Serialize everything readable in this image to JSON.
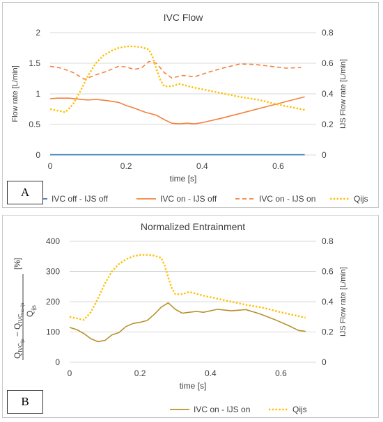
{
  "colors": {
    "ivc_off_ijs_off": "#2e75b6",
    "ivc_on_ijs_off": "#f4803c",
    "ivc_on_ijs_on_a": "#f4803c",
    "qijs": "#ffc000",
    "ivc_on_ijs_on_b": "#b8912c",
    "grid": "#d9d9d9",
    "text": "#404040"
  },
  "panels": {
    "a_label": "A",
    "b_label": "B"
  },
  "chart_data": [
    {
      "type": "line",
      "title": "IVC  Flow",
      "xlabel": "time [s]",
      "ylabel": "Flow rate [L/min]",
      "y2label": "IJS Flow rate [L/min]",
      "xlim": [
        0,
        0.7
      ],
      "ylim": [
        0,
        2
      ],
      "y2lim": [
        0,
        0.8
      ],
      "x_ticks": [
        "0",
        "0.2",
        "0.4",
        "0.6"
      ],
      "y_ticks": [
        "0",
        "0.5",
        "1",
        "1.5",
        "2"
      ],
      "y2_ticks": [
        "0",
        "0.2",
        "0.4",
        "0.6",
        "0.8"
      ],
      "grid": true,
      "legend_position": "bottom",
      "series": [
        {
          "name": "IVC off - IJS off",
          "axis": "left",
          "style": "solid",
          "x": [
            0,
            0.1,
            0.2,
            0.3,
            0.4,
            0.5,
            0.6,
            0.67
          ],
          "y": [
            0.005,
            0.005,
            0.005,
            0.005,
            0.005,
            0.005,
            0.005,
            0.005
          ]
        },
        {
          "name": "IVC on - IJS off",
          "axis": "left",
          "style": "solid",
          "x": [
            0,
            0.02,
            0.05,
            0.08,
            0.1,
            0.12,
            0.15,
            0.18,
            0.2,
            0.22,
            0.25,
            0.28,
            0.3,
            0.32,
            0.34,
            0.36,
            0.38,
            0.4,
            0.45,
            0.5,
            0.55,
            0.6,
            0.65,
            0.67
          ],
          "y": [
            0.92,
            0.93,
            0.93,
            0.91,
            0.9,
            0.91,
            0.89,
            0.86,
            0.81,
            0.77,
            0.7,
            0.65,
            0.58,
            0.52,
            0.51,
            0.52,
            0.51,
            0.53,
            0.6,
            0.68,
            0.76,
            0.84,
            0.92,
            0.95
          ]
        },
        {
          "name": "IVC on - IJS on",
          "axis": "left",
          "style": "dashed",
          "x": [
            0,
            0.03,
            0.06,
            0.09,
            0.12,
            0.15,
            0.18,
            0.2,
            0.22,
            0.24,
            0.26,
            0.28,
            0.3,
            0.32,
            0.35,
            0.38,
            0.42,
            0.46,
            0.5,
            0.54,
            0.58,
            0.62,
            0.66
          ],
          "y": [
            1.45,
            1.42,
            1.35,
            1.24,
            1.31,
            1.37,
            1.45,
            1.44,
            1.4,
            1.42,
            1.53,
            1.5,
            1.35,
            1.26,
            1.3,
            1.28,
            1.36,
            1.43,
            1.49,
            1.48,
            1.45,
            1.42,
            1.43
          ]
        },
        {
          "name": "Qijs",
          "axis": "right",
          "style": "dotted",
          "x": [
            0,
            0.02,
            0.04,
            0.06,
            0.08,
            0.1,
            0.12,
            0.14,
            0.16,
            0.18,
            0.2,
            0.22,
            0.24,
            0.26,
            0.27,
            0.28,
            0.29,
            0.3,
            0.32,
            0.34,
            0.38,
            0.42,
            0.46,
            0.5,
            0.55,
            0.6,
            0.65,
            0.67
          ],
          "y": [
            0.3,
            0.29,
            0.28,
            0.33,
            0.42,
            0.52,
            0.6,
            0.65,
            0.68,
            0.7,
            0.71,
            0.71,
            0.705,
            0.69,
            0.64,
            0.56,
            0.49,
            0.45,
            0.45,
            0.465,
            0.44,
            0.42,
            0.4,
            0.38,
            0.36,
            0.33,
            0.305,
            0.295
          ]
        }
      ]
    },
    {
      "type": "line",
      "title": "Normalized Entrainment",
      "xlabel": "time [s]",
      "ylabel": "[%]",
      "ylabel_fraction": {
        "q": "Q",
        "ivc_ijs": "IVC",
        "ijs_sub": "ijs",
        "ivc_no_ijs": "IVC",
        "no_ijs_sub": "no−ijs",
        "minus": "−",
        "qijs_q": "Q",
        "qijs_sub": "ijs"
      },
      "y2label": "IJS Flow rate [L/min]",
      "xlim": [
        0,
        0.7
      ],
      "ylim": [
        0,
        400
      ],
      "y2lim": [
        0,
        0.8
      ],
      "x_ticks": [
        "0",
        "0.2",
        "0.4",
        "0.6"
      ],
      "y_ticks": [
        "0",
        "100",
        "200",
        "300",
        "400"
      ],
      "y2_ticks": [
        "0",
        "0.2",
        "0.4",
        "0.6",
        "0.8"
      ],
      "grid": true,
      "legend_position": "bottom",
      "series": [
        {
          "name": "IVC on - IJS on",
          "axis": "left",
          "style": "solid",
          "x": [
            0,
            0.02,
            0.04,
            0.06,
            0.08,
            0.1,
            0.12,
            0.14,
            0.16,
            0.18,
            0.2,
            0.22,
            0.24,
            0.26,
            0.28,
            0.3,
            0.32,
            0.34,
            0.36,
            0.38,
            0.42,
            0.46,
            0.5,
            0.54,
            0.58,
            0.62,
            0.65,
            0.67
          ],
          "y": [
            115,
            108,
            95,
            78,
            68,
            72,
            90,
            98,
            118,
            128,
            132,
            138,
            158,
            182,
            196,
            175,
            162,
            165,
            168,
            165,
            175,
            170,
            174,
            160,
            142,
            122,
            105,
            102
          ]
        },
        {
          "name": "Qijs",
          "axis": "right",
          "style": "dotted",
          "x": [
            0,
            0.02,
            0.04,
            0.06,
            0.08,
            0.1,
            0.12,
            0.14,
            0.16,
            0.18,
            0.2,
            0.22,
            0.24,
            0.26,
            0.27,
            0.28,
            0.29,
            0.3,
            0.32,
            0.34,
            0.38,
            0.42,
            0.46,
            0.5,
            0.55,
            0.6,
            0.65,
            0.67
          ],
          "y": [
            0.3,
            0.29,
            0.28,
            0.33,
            0.42,
            0.52,
            0.6,
            0.65,
            0.68,
            0.7,
            0.71,
            0.71,
            0.705,
            0.69,
            0.64,
            0.56,
            0.49,
            0.45,
            0.45,
            0.465,
            0.44,
            0.42,
            0.4,
            0.38,
            0.36,
            0.33,
            0.305,
            0.295
          ]
        }
      ]
    }
  ]
}
